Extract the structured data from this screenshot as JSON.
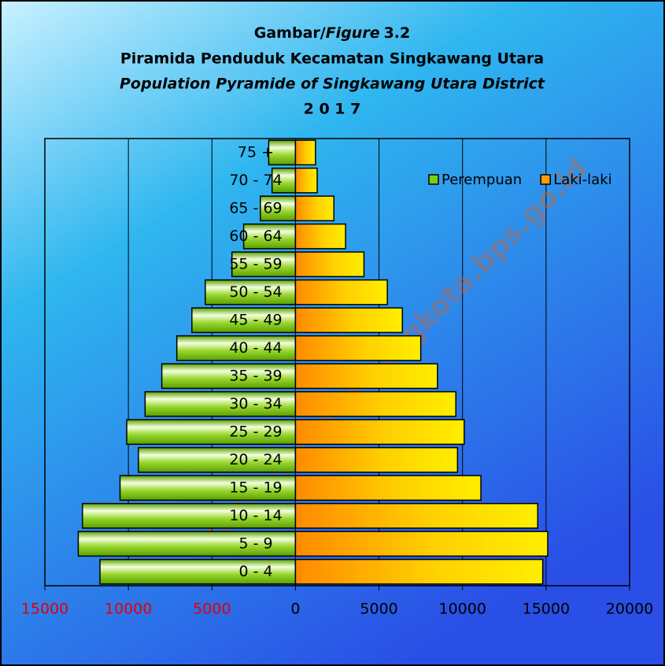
{
  "chart_data": {
    "type": "pyramid",
    "figure_prefix": "Gambar/",
    "figure_word": "Figure",
    "figure_number": "3.2",
    "title": "Piramida Penduduk Kecamatan Singkawang Utara",
    "subtitle": "Population Pyramide of Singkawang Utara District",
    "year": "2 0 1 7",
    "watermark": "https://singkawangkota.bps.go.id",
    "categories": [
      "0 - 4",
      "5 - 9",
      "10 - 14",
      "15 - 19",
      "20 - 24",
      "25 - 29",
      "30 - 34",
      "35 - 39",
      "40 - 44",
      "45 - 49",
      "50 - 54",
      "55 - 59",
      "60 - 64",
      "65 - 69",
      "70 - 74",
      "75 +"
    ],
    "series": [
      {
        "name": "Perempuan",
        "color": "#7ccd1a",
        "values": [
          -11700,
          -13000,
          -12750,
          -10500,
          -9400,
          -10100,
          -9000,
          -8000,
          -7100,
          -6200,
          -5400,
          -3800,
          -3100,
          -2100,
          -1400,
          -1600
        ]
      },
      {
        "name": "Laki-laki",
        "color": "#ffa000",
        "values": [
          14800,
          15100,
          14500,
          11100,
          9700,
          10100,
          9600,
          8500,
          7500,
          6400,
          5500,
          4100,
          3000,
          2300,
          1300,
          1200
        ]
      }
    ],
    "xlim": [
      -15000,
      20000
    ],
    "xticks": [
      {
        "value": -15000,
        "label": "15000"
      },
      {
        "value": -10000,
        "label": "10000"
      },
      {
        "value": -5000,
        "label": "5000"
      },
      0,
      5000,
      10000,
      15000,
      20000
    ],
    "negative_tick_color": "#e00000",
    "grid": true,
    "legend": "top-right"
  }
}
